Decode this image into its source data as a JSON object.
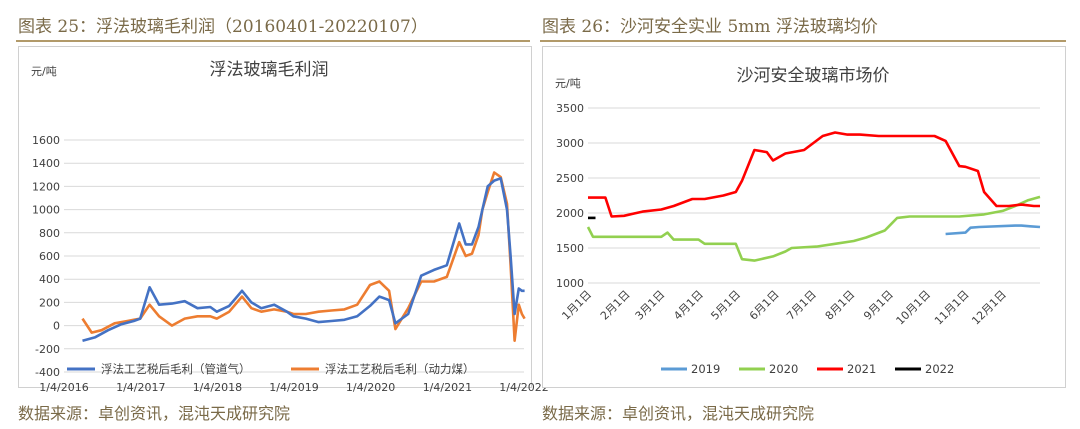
{
  "left": {
    "figure_title": "图表 25：浮法玻璃毛利润（20160401-20220107）",
    "source": "数据来源：卓创资讯，混沌天成研究院",
    "colors": {
      "series1": "#4472c4",
      "series2": "#ed7d31"
    }
  },
  "right": {
    "figure_title": "图表 26：沙河安全实业 5mm 浮法玻璃均价",
    "source": "数据来源：卓创资讯，混沌天成研究院",
    "colors": {
      "2019": "#5b9bd5",
      "2020": "#92d050",
      "2021": "#ff0000",
      "2022": "#000000"
    }
  },
  "chart_data": [
    {
      "type": "line",
      "title": "浮法玻璃毛利润",
      "ylabel": "元/吨",
      "xlabel": "",
      "ylim": [
        -400,
        1600
      ],
      "yticks": [
        -400,
        -200,
        0,
        200,
        400,
        600,
        800,
        1000,
        1200,
        1400,
        1600
      ],
      "xlim": [
        "2016-01-04",
        "2022-01-04"
      ],
      "xticks": [
        "1/4/2016",
        "1/4/2017",
        "1/4/2018",
        "1/4/2019",
        "1/4/2020",
        "1/4/2021",
        "1/4/2022"
      ],
      "grid": true,
      "legend": "bottom",
      "series": [
        {
          "name": "浮法工艺税后毛利（管道气）",
          "x": [
            "2016-04-01",
            "2016-06-01",
            "2016-08-01",
            "2016-10-01",
            "2016-12-01",
            "2017-01-01",
            "2017-02-15",
            "2017-04-01",
            "2017-06-01",
            "2017-08-01",
            "2017-10-01",
            "2017-12-01",
            "2018-01-01",
            "2018-03-01",
            "2018-05-01",
            "2018-06-15",
            "2018-08-01",
            "2018-10-01",
            "2018-12-01",
            "2019-01-01",
            "2019-03-01",
            "2019-05-01",
            "2019-07-01",
            "2019-09-01",
            "2019-11-01",
            "2020-01-01",
            "2020-02-15",
            "2020-04-01",
            "2020-05-01",
            "2020-07-01",
            "2020-09-01",
            "2020-11-01",
            "2021-01-01",
            "2021-03-01",
            "2021-04-01",
            "2021-05-01",
            "2021-06-01",
            "2021-06-20",
            "2021-07-15",
            "2021-08-15",
            "2021-09-15",
            "2021-10-15",
            "2021-11-01",
            "2021-11-20",
            "2021-12-10",
            "2021-12-25",
            "2022-01-07"
          ],
          "values": [
            -130,
            -100,
            -40,
            10,
            40,
            60,
            330,
            180,
            190,
            210,
            150,
            160,
            120,
            170,
            300,
            200,
            150,
            180,
            120,
            80,
            60,
            30,
            40,
            50,
            80,
            170,
            250,
            220,
            20,
            100,
            430,
            480,
            520,
            880,
            700,
            700,
            850,
            1000,
            1200,
            1250,
            1270,
            1000,
            600,
            100,
            320,
            300,
            300
          ]
        },
        {
          "name": "浮法工艺税后毛利（动力煤）",
          "x": [
            "2016-04-01",
            "2016-05-15",
            "2016-07-01",
            "2016-09-01",
            "2016-11-01",
            "2016-12-01",
            "2017-01-01",
            "2017-02-15",
            "2017-04-01",
            "2017-06-01",
            "2017-08-01",
            "2017-10-01",
            "2017-12-01",
            "2018-01-01",
            "2018-03-01",
            "2018-05-01",
            "2018-06-15",
            "2018-08-01",
            "2018-10-01",
            "2018-12-01",
            "2019-01-01",
            "2019-03-01",
            "2019-05-01",
            "2019-07-01",
            "2019-09-01",
            "2019-11-01",
            "2020-01-01",
            "2020-02-15",
            "2020-04-01",
            "2020-05-01",
            "2020-07-01",
            "2020-09-01",
            "2020-11-01",
            "2021-01-01",
            "2021-03-01",
            "2021-04-01",
            "2021-05-01",
            "2021-06-01",
            "2021-06-20",
            "2021-07-15",
            "2021-08-15",
            "2021-09-15",
            "2021-10-15",
            "2021-11-01",
            "2021-11-20",
            "2021-12-10",
            "2021-12-25",
            "2022-01-07"
          ],
          "values": [
            60,
            -60,
            -40,
            20,
            40,
            50,
            60,
            180,
            80,
            0,
            60,
            80,
            80,
            60,
            120,
            250,
            150,
            120,
            140,
            120,
            100,
            100,
            120,
            130,
            140,
            180,
            350,
            380,
            300,
            -30,
            150,
            380,
            380,
            420,
            720,
            600,
            620,
            780,
            1000,
            1150,
            1320,
            1280,
            1050,
            520,
            -130,
            180,
            100,
            60
          ]
        }
      ]
    },
    {
      "type": "line",
      "title": "沙河安全玻璃市场价",
      "ylabel": "元/吨",
      "xlabel": "",
      "ylim": [
        1000,
        3500
      ],
      "yticks": [
        1000,
        1500,
        2000,
        2500,
        3000,
        3500
      ],
      "categories": [
        "1月1日",
        "2月1日",
        "3月1日",
        "4月1日",
        "5月1日",
        "6月1日",
        "7月1日",
        "8月1日",
        "9月1日",
        "10月1日",
        "11月1日",
        "12月1日"
      ],
      "x_unit": "day_of_year",
      "grid": true,
      "legend": "bottom",
      "series": [
        {
          "name": "2019",
          "x": [
            289,
            305,
            309,
            316,
            345,
            350,
            357,
            365
          ],
          "values": [
            1700,
            1720,
            1790,
            1800,
            1820,
            1820,
            1810,
            1800
          ]
        },
        {
          "name": "2020",
          "x": [
            1,
            5,
            60,
            65,
            70,
            90,
            95,
            120,
            125,
            135,
            150,
            160,
            165,
            185,
            200,
            215,
            225,
            240,
            250,
            260,
            275,
            300,
            320,
            335,
            345,
            355,
            365
          ],
          "values": [
            1800,
            1660,
            1660,
            1720,
            1620,
            1620,
            1560,
            1560,
            1340,
            1320,
            1380,
            1450,
            1500,
            1520,
            1560,
            1600,
            1650,
            1750,
            1930,
            1950,
            1950,
            1950,
            1980,
            2030,
            2100,
            2180,
            2230
          ]
        },
        {
          "name": "2021",
          "x": [
            1,
            15,
            20,
            30,
            45,
            60,
            70,
            85,
            95,
            110,
            120,
            125,
            135,
            145,
            150,
            160,
            175,
            190,
            200,
            210,
            220,
            235,
            250,
            265,
            280,
            289,
            300,
            305,
            315,
            320,
            330,
            340,
            350,
            360,
            365
          ],
          "values": [
            2220,
            2220,
            1950,
            1960,
            2020,
            2050,
            2100,
            2200,
            2200,
            2250,
            2300,
            2460,
            2900,
            2870,
            2750,
            2850,
            2900,
            3100,
            3150,
            3120,
            3120,
            3100,
            3100,
            3100,
            3100,
            3030,
            2670,
            2660,
            2600,
            2300,
            2100,
            2100,
            2120,
            2100,
            2100
          ]
        },
        {
          "name": "2022",
          "x": [
            1,
            7
          ],
          "values": [
            1930,
            1930
          ]
        }
      ]
    }
  ]
}
